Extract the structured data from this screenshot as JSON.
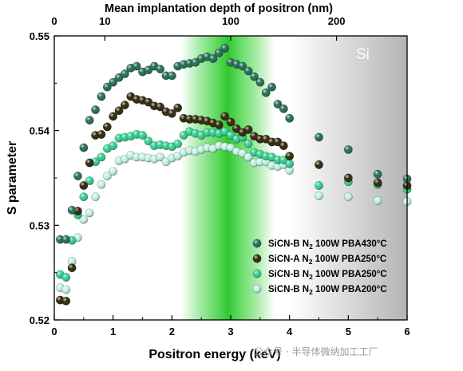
{
  "chart_data": {
    "type": "scatter",
    "xlabel": "Positron energy (keV)",
    "ylabel": "S parameter",
    "x2label": "Mean implantation depth of positron (nm)",
    "xlim": [
      0,
      6
    ],
    "ylim": [
      0.52,
      0.55
    ],
    "x_ticks": [
      "0",
      "1",
      "2",
      "3",
      "4",
      "5",
      "6"
    ],
    "y_ticks": [
      "0.52",
      "0.53",
      "0.54",
      "0.55"
    ],
    "x2_ticks": [
      {
        "label": "0",
        "energy": 0
      },
      {
        "label": "10",
        "energy": 0.86
      },
      {
        "label": "100",
        "energy": 3.0
      },
      {
        "label": "200",
        "energy": 4.8
      }
    ],
    "region_label": "Si",
    "region_si_start_kev": 4.0,
    "region_green_center_kev": 2.95,
    "legend_position": "bottom-right",
    "watermark": "公众号 · 半导体微纳加工工厂",
    "series": [
      {
        "name_main": "SiCN-B N",
        "name_sub": "2",
        "name_rest": " 100W  PBA430°C",
        "color": "#1f6b52",
        "x": [
          0.1,
          0.2,
          0.3,
          0.4,
          0.5,
          0.6,
          0.7,
          0.8,
          0.9,
          1.0,
          1.1,
          1.2,
          1.3,
          1.4,
          1.5,
          1.6,
          1.7,
          1.8,
          1.9,
          2.0,
          2.1,
          2.2,
          2.3,
          2.4,
          2.5,
          2.6,
          2.7,
          2.8,
          2.9,
          3.0,
          3.1,
          3.2,
          3.3,
          3.4,
          3.5,
          3.6,
          3.7,
          3.8,
          3.9,
          4.0,
          4.5,
          5.0,
          5.5,
          6.0
        ],
        "y": [
          0.5285,
          0.5285,
          0.5316,
          0.5352,
          0.5382,
          0.5411,
          0.5422,
          0.5436,
          0.5446,
          0.5451,
          0.5456,
          0.546,
          0.5466,
          0.5468,
          0.5462,
          0.5464,
          0.5468,
          0.5465,
          0.5458,
          0.5458,
          0.5468,
          0.547,
          0.5471,
          0.5472,
          0.5476,
          0.5478,
          0.5476,
          0.5482,
          0.5487,
          0.5472,
          0.547,
          0.5468,
          0.5463,
          0.5457,
          0.5451,
          0.544,
          0.5446,
          0.5428,
          0.5423,
          0.5413,
          0.5393,
          0.538,
          0.5354,
          0.5349
        ]
      },
      {
        "name_main": "SiCN-A N",
        "name_sub": "2",
        "name_rest": " 100W  PBA250°C",
        "color": "#2a2205",
        "x": [
          0.1,
          0.2,
          0.3,
          0.4,
          0.5,
          0.6,
          0.7,
          0.8,
          0.9,
          1.0,
          1.1,
          1.2,
          1.3,
          1.4,
          1.5,
          1.6,
          1.7,
          1.8,
          1.9,
          2.0,
          2.1,
          2.2,
          2.3,
          2.4,
          2.5,
          2.6,
          2.7,
          2.8,
          2.9,
          3.0,
          3.1,
          3.2,
          3.3,
          3.4,
          3.5,
          3.6,
          3.7,
          3.8,
          3.9,
          4.0,
          4.5,
          5.0,
          5.5,
          6.0
        ],
        "y": [
          0.5221,
          0.522,
          0.5255,
          0.5315,
          0.5342,
          0.5366,
          0.5395,
          0.5396,
          0.5404,
          0.5415,
          0.5421,
          0.5427,
          0.5436,
          0.5433,
          0.5432,
          0.543,
          0.5426,
          0.5425,
          0.542,
          0.5418,
          0.5424,
          0.5413,
          0.5412,
          0.5412,
          0.5411,
          0.541,
          0.5408,
          0.5406,
          0.5415,
          0.5409,
          0.5402,
          0.5398,
          0.5401,
          0.5394,
          0.5391,
          0.5391,
          0.5388,
          0.5388,
          0.5384,
          0.5373,
          0.5364,
          0.535,
          0.5345,
          0.5342
        ]
      },
      {
        "name_main": "SiCN-B N",
        "name_sub": "2",
        "name_rest": " 100W  PBA250°C",
        "color": "#2fcf8e",
        "x": [
          0.1,
          0.2,
          0.3,
          0.4,
          0.5,
          0.6,
          0.7,
          0.8,
          0.9,
          1.0,
          1.1,
          1.2,
          1.3,
          1.4,
          1.5,
          1.6,
          1.7,
          1.8,
          1.9,
          2.0,
          2.1,
          2.2,
          2.3,
          2.4,
          2.5,
          2.6,
          2.7,
          2.8,
          2.9,
          3.0,
          3.1,
          3.2,
          3.3,
          3.4,
          3.5,
          3.6,
          3.7,
          3.8,
          3.9,
          4.0,
          4.5,
          5.0,
          5.5,
          6.0
        ],
        "y": [
          0.5248,
          0.5245,
          0.5284,
          0.5311,
          0.533,
          0.5347,
          0.5367,
          0.5372,
          0.5381,
          0.5384,
          0.5392,
          0.5393,
          0.5394,
          0.5396,
          0.5395,
          0.5389,
          0.5384,
          0.5385,
          0.5384,
          0.5383,
          0.5386,
          0.5395,
          0.5399,
          0.5397,
          0.5395,
          0.5398,
          0.5398,
          0.5397,
          0.5399,
          0.5395,
          0.5391,
          0.5393,
          0.5386,
          0.5377,
          0.5375,
          0.5373,
          0.5372,
          0.5369,
          0.5369,
          0.5365,
          0.5342,
          0.5346,
          0.5343,
          0.5338
        ]
      },
      {
        "name_main": "SiCN-B N",
        "name_sub": "2",
        "name_rest": " 100W  PBA200°C",
        "color": "#bff2e2",
        "x": [
          0.1,
          0.2,
          0.3,
          0.4,
          0.5,
          0.6,
          0.7,
          0.8,
          0.9,
          1.0,
          1.1,
          1.2,
          1.3,
          1.4,
          1.5,
          1.6,
          1.7,
          1.8,
          1.9,
          2.0,
          2.1,
          2.2,
          2.3,
          2.4,
          2.5,
          2.6,
          2.7,
          2.8,
          2.9,
          3.0,
          3.1,
          3.2,
          3.3,
          3.4,
          3.5,
          3.6,
          3.7,
          3.8,
          3.9,
          4.0,
          4.5,
          5.0,
          5.5,
          6.0
        ],
        "y": [
          0.5234,
          0.5232,
          0.5262,
          0.5287,
          0.5306,
          0.5313,
          0.533,
          0.5343,
          0.5352,
          0.5357,
          0.5368,
          0.537,
          0.5374,
          0.5372,
          0.5372,
          0.5371,
          0.537,
          0.5372,
          0.5367,
          0.5371,
          0.5373,
          0.5377,
          0.5379,
          0.5378,
          0.538,
          0.5382,
          0.5381,
          0.5384,
          0.5383,
          0.5382,
          0.5378,
          0.5376,
          0.5372,
          0.5366,
          0.5367,
          0.5367,
          0.5363,
          0.5362,
          0.5364,
          0.5358,
          0.5331,
          0.533,
          0.5326,
          0.5325
        ]
      }
    ]
  }
}
